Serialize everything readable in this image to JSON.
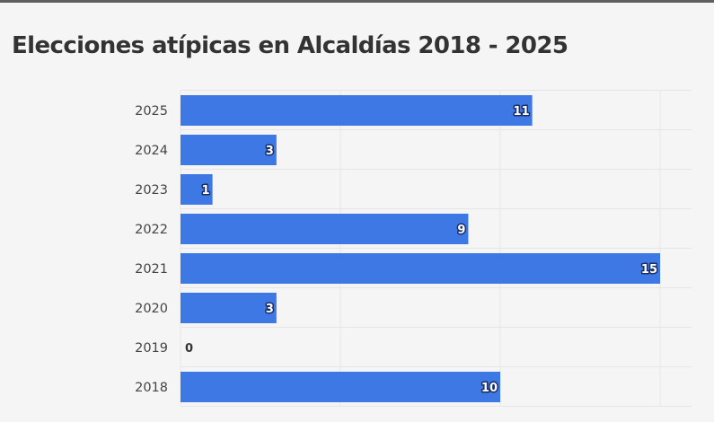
{
  "chart_data": {
    "type": "bar",
    "orientation": "horizontal",
    "title": "Elecciones atípicas en Alcaldías 2018 - 2025",
    "categories": [
      "2025",
      "2024",
      "2023",
      "2022",
      "2021",
      "2020",
      "2019",
      "2018"
    ],
    "values": [
      11,
      3,
      1,
      9,
      15,
      3,
      0,
      10
    ],
    "xlim": [
      0,
      16
    ],
    "grid": true,
    "legend": "none",
    "colors": {
      "bar": "#3d78e4",
      "grid": "#e6e6e6",
      "background": "#f5f5f5"
    }
  }
}
